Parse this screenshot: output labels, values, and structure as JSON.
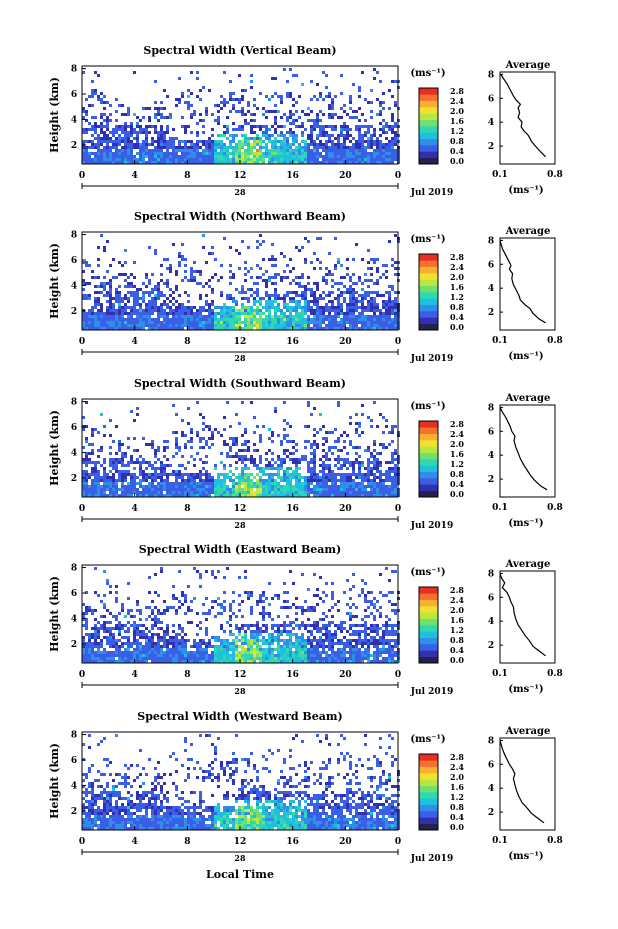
{
  "chart_data": {
    "type": "heatmap",
    "date_label": "Jul 2019",
    "day_label": "28",
    "x_label": "Local Time",
    "x_ticks": [
      "0",
      "4",
      "8",
      "12",
      "16",
      "20",
      "0"
    ],
    "y_label": "Height (km)",
    "y_ticks": [
      "2",
      "4",
      "6",
      "8"
    ],
    "colorbar": {
      "unit": "(ms⁻¹)",
      "ticks": [
        "0.0",
        "0.4",
        "0.8",
        "1.2",
        "1.6",
        "2.0",
        "2.4",
        "2.8"
      ],
      "colors": [
        "#22224a",
        "#3030b0",
        "#3a5fe6",
        "#2f8fe8",
        "#1ec0e0",
        "#30d8b0",
        "#70e070",
        "#b8e840",
        "#f0e030",
        "#f8b030",
        "#f87030",
        "#e83020"
      ]
    },
    "panels": [
      {
        "title": "Spectral Width (Vertical Beam)",
        "profile": [
          [
            0.68,
            1.1
          ],
          [
            0.62,
            1.5
          ],
          [
            0.55,
            2.0
          ],
          [
            0.5,
            2.4
          ],
          [
            0.46,
            2.9
          ],
          [
            0.4,
            3.3
          ],
          [
            0.37,
            3.6
          ],
          [
            0.38,
            4.0
          ],
          [
            0.33,
            4.4
          ],
          [
            0.35,
            4.8
          ],
          [
            0.33,
            5.2
          ],
          [
            0.36,
            5.5
          ],
          [
            0.3,
            5.9
          ],
          [
            0.27,
            6.2
          ],
          [
            0.23,
            6.7
          ],
          [
            0.19,
            7.2
          ],
          [
            0.14,
            7.7
          ],
          [
            0.11,
            8.0
          ]
        ]
      },
      {
        "title": "Spectral Width (Northward Beam)",
        "profile": [
          [
            0.68,
            1.1
          ],
          [
            0.6,
            1.4
          ],
          [
            0.52,
            1.9
          ],
          [
            0.48,
            2.3
          ],
          [
            0.42,
            2.6
          ],
          [
            0.36,
            3.0
          ],
          [
            0.34,
            3.4
          ],
          [
            0.31,
            3.8
          ],
          [
            0.27,
            4.3
          ],
          [
            0.25,
            4.8
          ],
          [
            0.26,
            5.2
          ],
          [
            0.22,
            5.6
          ],
          [
            0.24,
            5.9
          ],
          [
            0.21,
            6.3
          ],
          [
            0.17,
            6.8
          ],
          [
            0.13,
            7.3
          ],
          [
            0.1,
            8.0
          ]
        ]
      },
      {
        "title": "Spectral Width (Southward Beam)",
        "profile": [
          [
            0.7,
            1.1
          ],
          [
            0.62,
            1.4
          ],
          [
            0.54,
            1.9
          ],
          [
            0.49,
            2.3
          ],
          [
            0.44,
            2.8
          ],
          [
            0.4,
            3.2
          ],
          [
            0.36,
            3.7
          ],
          [
            0.33,
            4.2
          ],
          [
            0.3,
            4.7
          ],
          [
            0.28,
            5.2
          ],
          [
            0.29,
            5.6
          ],
          [
            0.25,
            6.0
          ],
          [
            0.23,
            6.4
          ],
          [
            0.2,
            6.8
          ],
          [
            0.17,
            7.2
          ],
          [
            0.13,
            7.6
          ],
          [
            0.1,
            8.0
          ]
        ]
      },
      {
        "title": "Spectral Width (Eastward Beam)",
        "profile": [
          [
            0.68,
            1.1
          ],
          [
            0.6,
            1.5
          ],
          [
            0.52,
            1.9
          ],
          [
            0.47,
            2.4
          ],
          [
            0.42,
            2.8
          ],
          [
            0.38,
            3.2
          ],
          [
            0.33,
            3.7
          ],
          [
            0.3,
            4.2
          ],
          [
            0.28,
            4.7
          ],
          [
            0.27,
            5.2
          ],
          [
            0.24,
            5.6
          ],
          [
            0.22,
            6.0
          ],
          [
            0.19,
            6.4
          ],
          [
            0.13,
            6.8
          ],
          [
            0.16,
            7.2
          ],
          [
            0.12,
            7.6
          ],
          [
            0.1,
            8.0
          ]
        ]
      },
      {
        "title": "Spectral Width (Westward Beam)",
        "profile": [
          [
            0.66,
            1.1
          ],
          [
            0.58,
            1.5
          ],
          [
            0.5,
            1.9
          ],
          [
            0.45,
            2.3
          ],
          [
            0.38,
            2.8
          ],
          [
            0.34,
            3.3
          ],
          [
            0.31,
            3.8
          ],
          [
            0.29,
            4.3
          ],
          [
            0.27,
            4.8
          ],
          [
            0.29,
            5.2
          ],
          [
            0.26,
            5.6
          ],
          [
            0.22,
            6.0
          ],
          [
            0.19,
            6.4
          ],
          [
            0.16,
            6.8
          ],
          [
            0.13,
            7.3
          ],
          [
            0.1,
            8.0
          ]
        ]
      }
    ],
    "profile_panel": {
      "title": "Average",
      "x_ticks": [
        "0.1",
        "0.8"
      ],
      "x_label": "(ms⁻¹)",
      "xlim": [
        0.1,
        0.8
      ],
      "ylim": [
        0.5,
        8.2
      ],
      "y_ticks": [
        "2",
        "4",
        "6",
        "8"
      ]
    },
    "xlim": [
      0,
      24
    ],
    "ylim": [
      0.5,
      8.2
    ]
  }
}
